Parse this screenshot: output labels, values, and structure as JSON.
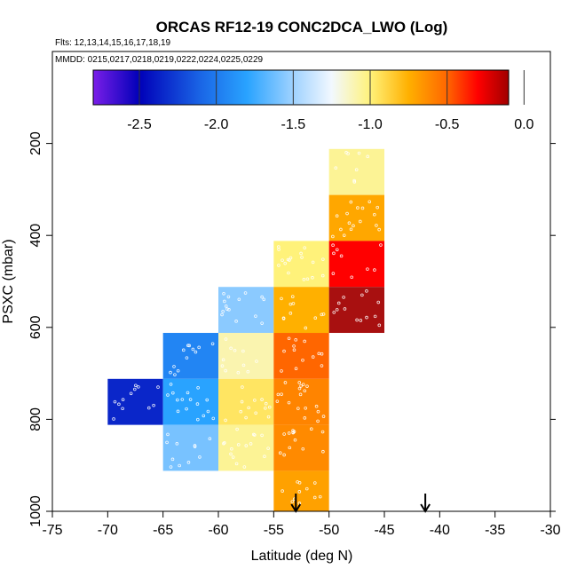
{
  "chart_data": {
    "type": "heatmap",
    "title": "ORCAS RF12-19 CONC2DCA_LWO (Log)",
    "flights_text": "Flts: 12,13,14,15,16,17,18,19",
    "dates_text": "MMDD: 0215,0217,0218,0219,0222,0224,0225,0229",
    "xlabel": "Latitude (deg N)",
    "ylabel": "PSXC (mbar)",
    "xlim": [
      -75,
      -30
    ],
    "ylim": [
      1000,
      0
    ],
    "x_ticks": [
      -75,
      -70,
      -65,
      -60,
      -55,
      -50,
      -45,
      -40,
      -35,
      -30
    ],
    "x_tick_labels": [
      "-75",
      "-70",
      "-65",
      "-60",
      "-55",
      "-50",
      "-45",
      "-40",
      "-35",
      "-30"
    ],
    "y_ticks": [
      200,
      400,
      600,
      800,
      1000
    ],
    "y_tick_labels": [
      "200",
      "400",
      "600",
      "800",
      "1000"
    ],
    "colorbar": {
      "range": [
        -2.8,
        -0.1
      ],
      "ticks": [
        -2.5,
        -2.0,
        -1.5,
        -1.0,
        -0.5,
        0.0
      ],
      "tick_labels": [
        "-2.5",
        "-2.0",
        "-1.5",
        "-1.0",
        "-0.5",
        "0.0"
      ],
      "stops": [
        {
          "v": -2.8,
          "c": "#7a1ee8"
        },
        {
          "v": -2.5,
          "c": "#0000b8"
        },
        {
          "v": -2.1,
          "c": "#1a66e6"
        },
        {
          "v": -1.8,
          "c": "#29a3ff"
        },
        {
          "v": -1.5,
          "c": "#9fd2ff"
        },
        {
          "v": -1.25,
          "c": "#f2f8ff"
        },
        {
          "v": -1.0,
          "c": "#fff27a"
        },
        {
          "v": -0.75,
          "c": "#ffb000"
        },
        {
          "v": -0.5,
          "c": "#ff6600"
        },
        {
          "v": -0.3,
          "c": "#ff0000"
        },
        {
          "v": -0.1,
          "c": "#a00000"
        },
        {
          "v": 0.0,
          "c": "#b02020"
        }
      ]
    },
    "cells": [
      {
        "lat0": -70,
        "lat1": -65,
        "p0": 712,
        "p1": 812,
        "value": -2.35
      },
      {
        "lat0": -65,
        "lat1": -60,
        "p0": 612,
        "p1": 712,
        "value": -1.95
      },
      {
        "lat0": -65,
        "lat1": -60,
        "p0": 712,
        "p1": 812,
        "value": -1.8
      },
      {
        "lat0": -65,
        "lat1": -60,
        "p0": 812,
        "p1": 912,
        "value": -1.6
      },
      {
        "lat0": -60,
        "lat1": -55,
        "p0": 512,
        "p1": 612,
        "value": -1.55
      },
      {
        "lat0": -60,
        "lat1": -55,
        "p0": 612,
        "p1": 712,
        "value": -1.1
      },
      {
        "lat0": -60,
        "lat1": -55,
        "p0": 712,
        "p1": 812,
        "value": -0.95
      },
      {
        "lat0": -60,
        "lat1": -55,
        "p0": 812,
        "p1": 912,
        "value": -1.05
      },
      {
        "lat0": -55,
        "lat1": -50,
        "p0": 412,
        "p1": 512,
        "value": -1.0
      },
      {
        "lat0": -55,
        "lat1": -50,
        "p0": 512,
        "p1": 612,
        "value": -0.75
      },
      {
        "lat0": -55,
        "lat1": -50,
        "p0": 612,
        "p1": 712,
        "value": -0.5
      },
      {
        "lat0": -55,
        "lat1": -50,
        "p0": 712,
        "p1": 812,
        "value": -0.6
      },
      {
        "lat0": -55,
        "lat1": -50,
        "p0": 812,
        "p1": 912,
        "value": -0.62
      },
      {
        "lat0": -55,
        "lat1": -50,
        "p0": 912,
        "p1": 1012,
        "value": -0.7
      },
      {
        "lat0": -50,
        "lat1": -45,
        "p0": 212,
        "p1": 312,
        "value": -1.05
      },
      {
        "lat0": -50,
        "lat1": -45,
        "p0": 312,
        "p1": 412,
        "value": -0.72
      },
      {
        "lat0": -50,
        "lat1": -45,
        "p0": 412,
        "p1": 512,
        "value": -0.3
      },
      {
        "lat0": -50,
        "lat1": -45,
        "p0": 512,
        "p1": 612,
        "value": -0.05
      }
    ],
    "markers": [
      {
        "type": "arrow",
        "lat": -53
      },
      {
        "type": "arrow",
        "lat": -41.3
      }
    ]
  }
}
